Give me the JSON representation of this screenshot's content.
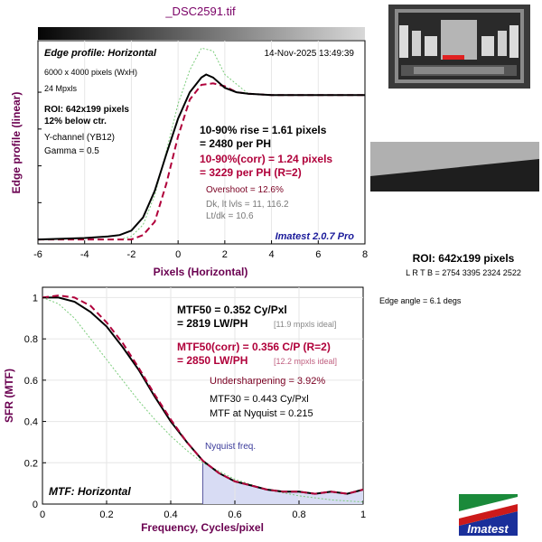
{
  "file_title": "_DSC2591.tif",
  "edge_panel": {
    "title": "Edge profile: Horizontal",
    "timestamp": "14-Nov-2025 13:49:39",
    "info_lines": [
      "6000 x 4000 pixels (WxH)",
      "24 Mpxls"
    ],
    "roi_lines": [
      "ROI: 642x199 pixels",
      "12% below ctr."
    ],
    "channel_lines": [
      "Y-channel  (YB12)",
      "Gamma = 0.5"
    ],
    "rise_lines": [
      "10-90% rise = 1.61 pixels",
      "= 2480 per PH"
    ],
    "corr_lines": [
      "10-90%(corr) = 1.24 pixels",
      "= 3229 per PH  (R=2)"
    ],
    "overshoot": "Overshoot = 12.6%",
    "levels_lines": [
      "Dk, lt lvls = 11, 116.2",
      "Lt/dk = 10.6"
    ],
    "version": "Imatest 2.0.7 Pro"
  },
  "mtf_panel": {
    "title": "MTF: Horizontal",
    "mtf50_lines": [
      "MTF50 = 0.352 Cy/Pxl",
      "= 2819 LW/PH"
    ],
    "mtf50_ideal": "[11.9 mpxls ideal]",
    "mtf50corr_lines": [
      "MTF50(corr) = 0.356 C/P  (R=2)",
      "= 2850 LW/PH"
    ],
    "mtf50corr_ideal": "[12.2 mpxls ideal]",
    "undersharpening": "Undersharpening = 3.92%",
    "mtf30": "MTF30 = 0.443 Cy/Pxl",
    "nyquist_mtf": "MTF at Nyquist = 0.215",
    "nyquist_label": "Nyquist freq."
  },
  "roi_info": {
    "title": "ROI: 642x199 pixels",
    "coords": "L R  T B = 2754 3395  2324 2522",
    "edge_angle": "Edge angle = 6.1 degs"
  },
  "logo_text": "Imatest",
  "colors": {
    "measured": "#000000",
    "corrected": "#b0003a",
    "ideal": "#7acc7a",
    "nyquist_fill": "#d8dcf4"
  },
  "chart_data": [
    {
      "type": "line",
      "title": "Edge profile: Horizontal",
      "xlabel": "Pixels (Horizontal)",
      "ylabel": "Edge profile (linear)",
      "xlim": [
        -6,
        8
      ],
      "xticks": [
        -6,
        -4,
        -2,
        0,
        2,
        4,
        6,
        8
      ],
      "series": [
        {
          "x": [
            -6,
            -4,
            -3,
            -2.5,
            -2,
            -1.5,
            -1,
            -0.5,
            0,
            0.5,
            1,
            1.2,
            1.5,
            2,
            2.5,
            3,
            4,
            5,
            6,
            7,
            8
          ],
          "y": [
            0.0,
            0.01,
            0.02,
            0.03,
            0.06,
            0.15,
            0.33,
            0.58,
            0.82,
            1.0,
            1.1,
            1.12,
            1.1,
            1.03,
            1.0,
            0.99,
            0.98,
            0.98,
            0.98,
            0.98,
            0.98
          ]
        },
        {
          "x": [
            -6,
            -3,
            -2,
            -1.5,
            -1,
            -0.5,
            0,
            0.5,
            1,
            1.5,
            2,
            2.5,
            3,
            4,
            5,
            6,
            7,
            8
          ],
          "y": [
            0.0,
            0.0,
            0.0,
            0.03,
            0.12,
            0.38,
            0.7,
            0.95,
            1.05,
            1.06,
            1.04,
            1.0,
            0.99,
            0.98,
            0.98,
            0.98,
            0.98,
            0.98
          ]
        },
        {
          "x": [
            -2.5,
            -2,
            -1.5,
            -1,
            -0.5,
            0,
            0.5,
            1,
            1.5,
            2,
            3,
            4,
            5,
            6,
            7,
            8
          ],
          "y": [
            0.0,
            0.02,
            0.1,
            0.3,
            0.6,
            0.92,
            1.15,
            1.3,
            1.28,
            1.12,
            0.99,
            0.98,
            0.98,
            0.98,
            0.98,
            0.98
          ]
        }
      ]
    },
    {
      "type": "line",
      "title": "MTF: Horizontal",
      "xlabel": "Frequency, Cycles/pixel",
      "ylabel": "SFR (MTF)",
      "xlim": [
        0,
        1
      ],
      "ylim": [
        0,
        1.05
      ],
      "xticks": [
        0,
        0.2,
        0.4,
        0.6,
        0.8,
        1
      ],
      "yticks": [
        0,
        0.2,
        0.4,
        0.6,
        0.8,
        1
      ],
      "nyquist": 0.5,
      "series": [
        {
          "x": [
            0,
            0.05,
            0.1,
            0.15,
            0.2,
            0.25,
            0.3,
            0.35,
            0.4,
            0.45,
            0.5,
            0.55,
            0.6,
            0.65,
            0.7,
            0.75,
            0.8,
            0.85,
            0.9,
            0.95,
            1.0
          ],
          "y": [
            1.0,
            1.0,
            0.98,
            0.93,
            0.86,
            0.76,
            0.65,
            0.52,
            0.4,
            0.3,
            0.21,
            0.15,
            0.11,
            0.09,
            0.07,
            0.06,
            0.06,
            0.05,
            0.06,
            0.05,
            0.07
          ]
        },
        {
          "x": [
            0,
            0.05,
            0.1,
            0.15,
            0.2,
            0.25,
            0.3,
            0.35,
            0.4,
            0.45,
            0.5,
            0.55,
            0.6,
            0.65,
            0.7,
            0.75,
            0.8,
            0.85,
            0.9,
            0.95,
            1.0
          ],
          "y": [
            1.0,
            1.01,
            1.0,
            0.96,
            0.88,
            0.78,
            0.66,
            0.53,
            0.41,
            0.3,
            0.21,
            0.15,
            0.11,
            0.09,
            0.07,
            0.06,
            0.06,
            0.05,
            0.06,
            0.05,
            0.07
          ]
        },
        {
          "x": [
            0,
            0.05,
            0.1,
            0.15,
            0.2,
            0.25,
            0.3,
            0.35,
            0.4,
            0.45,
            0.5,
            0.6,
            0.7,
            0.8,
            0.9,
            1.0
          ],
          "y": [
            1.0,
            0.97,
            0.9,
            0.8,
            0.7,
            0.6,
            0.5,
            0.41,
            0.33,
            0.26,
            0.2,
            0.12,
            0.07,
            0.04,
            0.02,
            0.01
          ]
        }
      ]
    }
  ]
}
